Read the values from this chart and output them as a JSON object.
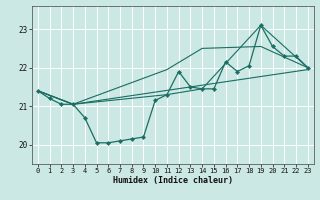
{
  "xlabel": "Humidex (Indice chaleur)",
  "background_color": "#cce8e4",
  "grid_color": "#ffffff",
  "line_color": "#1a6e64",
  "xlim": [
    -0.5,
    23.5
  ],
  "ylim": [
    19.5,
    23.6
  ],
  "yticks": [
    20,
    21,
    22,
    23
  ],
  "xticks": [
    0,
    1,
    2,
    3,
    4,
    5,
    6,
    7,
    8,
    9,
    10,
    11,
    12,
    13,
    14,
    15,
    16,
    17,
    18,
    19,
    20,
    21,
    22,
    23
  ],
  "series_main": {
    "x": [
      0,
      1,
      2,
      3,
      4,
      5,
      6,
      7,
      8,
      9,
      10,
      11,
      12,
      13,
      14,
      15,
      16,
      17,
      18,
      19,
      20,
      21,
      22,
      23
    ],
    "y": [
      21.4,
      21.2,
      21.05,
      21.05,
      20.7,
      20.05,
      20.05,
      20.1,
      20.15,
      20.2,
      21.15,
      21.3,
      21.9,
      21.5,
      21.45,
      21.45,
      22.15,
      21.9,
      22.05,
      23.1,
      22.55,
      22.3,
      22.3,
      22.0
    ]
  },
  "series_lines": [
    {
      "x": [
        0,
        3,
        11,
        14,
        19,
        23
      ],
      "y": [
        21.4,
        21.05,
        21.3,
        21.45,
        23.1,
        22.0
      ]
    },
    {
      "x": [
        0,
        3,
        11,
        14,
        19,
        23
      ],
      "y": [
        21.4,
        21.05,
        21.95,
        22.5,
        22.55,
        22.0
      ]
    },
    {
      "x": [
        0,
        3,
        23
      ],
      "y": [
        21.4,
        21.05,
        21.95
      ]
    }
  ],
  "xlabel_fontsize": 6,
  "tick_fontsize": 5,
  "linewidth": 0.9,
  "markersize": 2.2
}
